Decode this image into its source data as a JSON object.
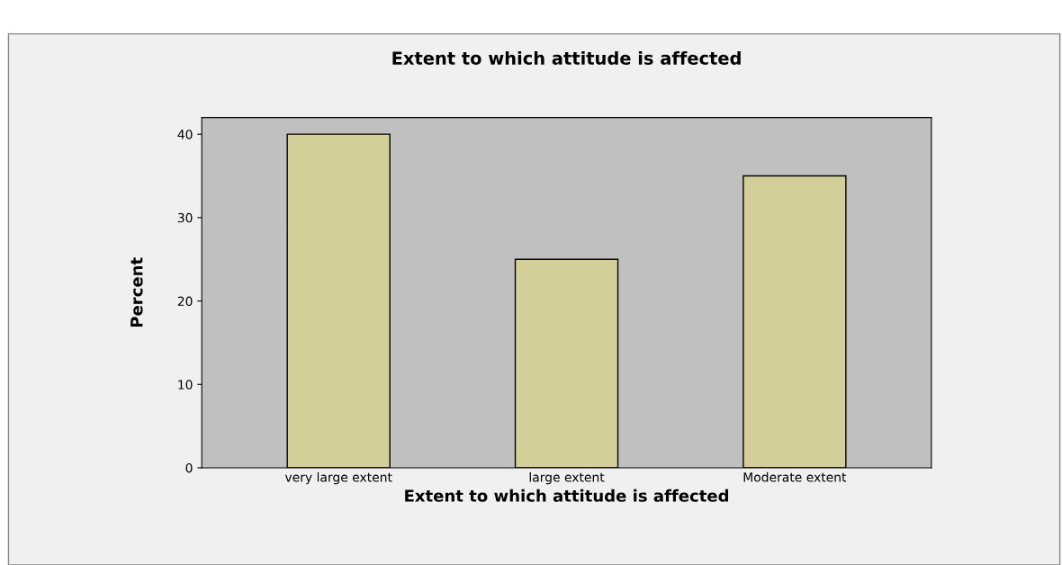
{
  "chart_data": {
    "type": "bar",
    "title": "Extent to which attitude is affected",
    "xlabel": "Extent to which attitude is affected",
    "ylabel": "Percent",
    "categories": [
      "very large extent",
      "large extent",
      "Moderate extent"
    ],
    "values": [
      40,
      25,
      35
    ],
    "color": "#d4cf98",
    "ylim": [
      0,
      42
    ],
    "yticks": [
      0,
      10,
      20,
      30,
      40
    ],
    "grid": false
  }
}
